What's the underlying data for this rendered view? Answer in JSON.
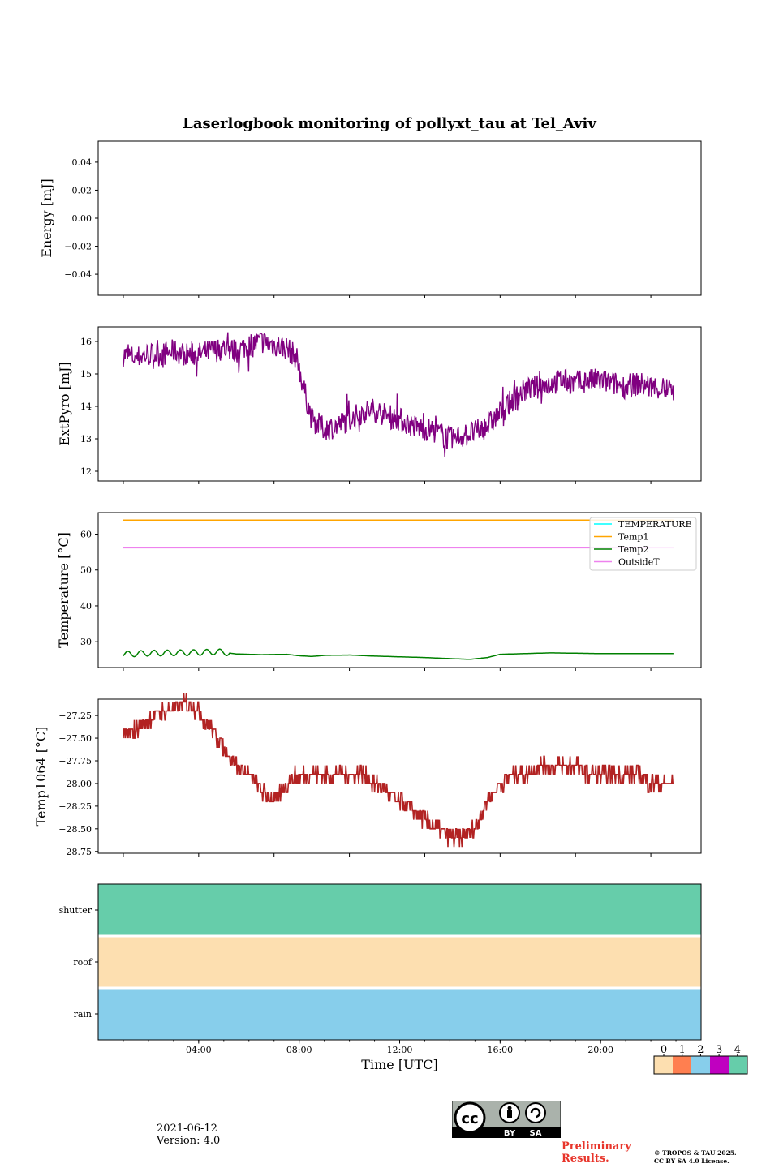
{
  "figure": {
    "title": "Laserlogbook monitoring of pollyxt_tau at Tel_Aviv",
    "date": "2021-06-12",
    "version": "Version: 4.0",
    "preliminary": [
      "Preliminary",
      "Results."
    ],
    "copyright": [
      "© TROPOS & TAU 2025.",
      "CC BY SA 4.0 License."
    ],
    "cc_badge": {
      "by": "BY",
      "sa": "SA",
      "cc": "cc"
    },
    "colors": {
      "energy": "#1f77b4",
      "extpyro": "#800080",
      "temp1": "#ffa500",
      "temp2": "#008000",
      "outside": "#ee82ee",
      "temperature": "#00ffff",
      "temp1064": "#b22222"
    }
  },
  "chart_data": [
    {
      "type": "line",
      "ylabel": "Energy [mJ]",
      "ylim": [
        -0.055,
        0.055
      ],
      "yticks": [
        0.04,
        0.02,
        0.0,
        -0.02,
        -0.04
      ],
      "ytick_labels": [
        "0.04",
        "0.02",
        "0.00",
        "−0.02",
        "−0.04"
      ],
      "series": [
        {
          "values": []
        }
      ]
    },
    {
      "type": "line",
      "ylabel": "ExtPyro [mJ]",
      "ylim": [
        11.7,
        16.45
      ],
      "yticks": [
        16,
        15,
        14,
        13,
        12
      ],
      "ytick_labels": [
        "16",
        "15",
        "14",
        "13",
        "12"
      ],
      "x": [
        1.0,
        1.5,
        2.0,
        2.5,
        3.0,
        3.5,
        4.0,
        4.5,
        5.0,
        5.5,
        6.0,
        6.5,
        7.0,
        7.5,
        7.9,
        8.2,
        8.5,
        9.0,
        9.5,
        10.0,
        10.5,
        11.0,
        11.5,
        12.0,
        12.5,
        13.0,
        13.5,
        14.0,
        14.5,
        15.0,
        15.5,
        16.0,
        16.5,
        17.0,
        17.5,
        18.0,
        18.5,
        19.0,
        19.5,
        20.0,
        20.5,
        21.0,
        21.5,
        22.0,
        22.9
      ],
      "series": [
        {
          "name": "ExtPyro",
          "color": "#800080",
          "values": [
            15.6,
            15.5,
            15.6,
            15.6,
            15.7,
            15.6,
            15.6,
            15.7,
            15.8,
            15.7,
            15.9,
            16.0,
            15.9,
            15.8,
            15.5,
            14.5,
            13.6,
            13.3,
            13.4,
            13.6,
            13.8,
            13.9,
            13.7,
            13.6,
            13.4,
            13.3,
            13.2,
            13.0,
            13.1,
            13.2,
            13.4,
            13.8,
            14.2,
            14.5,
            14.6,
            14.7,
            14.8,
            14.7,
            14.8,
            14.8,
            14.7,
            14.6,
            14.7,
            14.6,
            14.5
          ]
        }
      ]
    },
    {
      "type": "line",
      "ylabel": "Temperature [°C]",
      "ylim": [
        22.8,
        66
      ],
      "yticks": [
        60,
        50,
        40,
        30
      ],
      "ytick_labels": [
        "60",
        "50",
        "40",
        "30"
      ],
      "legend": {
        "position": "top-right",
        "entries": [
          "TEMPERATURE",
          "Temp1",
          "Temp2",
          "OutsideT"
        ]
      },
      "series": [
        {
          "name": "TEMPERATURE",
          "color": "#00ffff",
          "x": [],
          "values": []
        },
        {
          "name": "Temp1",
          "color": "#ffa500",
          "x": [
            1.0,
            22.9
          ],
          "values": [
            63.9,
            63.9
          ]
        },
        {
          "name": "Temp2",
          "color": "#008000",
          "x": [
            1.0,
            2.0,
            3.0,
            4.0,
            4.8,
            5.5,
            6.5,
            7.5,
            8.0,
            8.5,
            9.0,
            10.0,
            11.0,
            12.0,
            13.0,
            14.0,
            14.8,
            15.5,
            16.0,
            17.0,
            18.0,
            19.0,
            20.0,
            21.0,
            22.9
          ],
          "values": [
            26.5,
            26.8,
            26.9,
            27.0,
            27.2,
            26.6,
            26.4,
            26.5,
            26.1,
            25.9,
            26.2,
            26.3,
            26.0,
            25.8,
            25.6,
            25.3,
            25.1,
            25.6,
            26.5,
            26.7,
            26.9,
            26.8,
            26.7,
            26.7,
            26.7
          ]
        },
        {
          "name": "OutsideT",
          "color": "#ee82ee",
          "x": [
            1.0,
            22.9
          ],
          "values": [
            56.2,
            56.2
          ]
        }
      ]
    },
    {
      "type": "line",
      "ylabel": "Temp1064 [°C]",
      "ylim": [
        -28.77,
        -27.07
      ],
      "yticks": [
        -27.25,
        -27.5,
        -27.75,
        -28.0,
        -28.25,
        -28.5,
        -28.75
      ],
      "ytick_labels": [
        "−27.25",
        "−27.50",
        "−27.75",
        "−28.00",
        "−28.25",
        "−28.50",
        "−28.75"
      ],
      "x": [
        1.0,
        1.5,
        2.0,
        2.5,
        3.0,
        3.5,
        4.0,
        4.5,
        5.0,
        5.5,
        6.0,
        6.5,
        7.0,
        7.5,
        8.0,
        8.5,
        9.0,
        9.5,
        10.0,
        10.5,
        11.0,
        11.5,
        12.0,
        12.5,
        13.0,
        13.5,
        14.0,
        14.5,
        15.0,
        15.5,
        16.0,
        16.5,
        17.0,
        17.5,
        18.0,
        18.5,
        19.0,
        19.5,
        20.0,
        20.5,
        21.0,
        21.5,
        22.0,
        22.9
      ],
      "series": [
        {
          "name": "Temp1064",
          "color": "#b22222",
          "values": [
            -27.5,
            -27.4,
            -27.3,
            -27.2,
            -27.2,
            -27.1,
            -27.2,
            -27.4,
            -27.6,
            -27.8,
            -27.9,
            -28.1,
            -28.2,
            -28.0,
            -27.9,
            -27.9,
            -27.9,
            -27.9,
            -27.9,
            -27.9,
            -28.0,
            -28.1,
            -28.2,
            -28.3,
            -28.4,
            -28.5,
            -28.6,
            -28.6,
            -28.5,
            -28.2,
            -28.0,
            -27.9,
            -27.9,
            -27.8,
            -27.8,
            -27.8,
            -27.8,
            -27.9,
            -27.9,
            -27.9,
            -27.9,
            -27.9,
            -28.0,
            -28.0
          ]
        }
      ]
    },
    {
      "type": "heatmap",
      "xlabel": "Time [UTC]",
      "xlim": [
        0,
        24
      ],
      "xticks": [
        4,
        8,
        12,
        16,
        20
      ],
      "xtick_labels": [
        "04:00",
        "08:00",
        "12:00",
        "16:00",
        "20:00"
      ],
      "rows": [
        "shutter",
        "roof",
        "rain"
      ],
      "row_values": [
        4,
        0,
        2
      ],
      "colorbar": {
        "ticks": [
          "0",
          "1",
          "2",
          "3",
          "4"
        ],
        "colors": [
          "#fddfb0",
          "#ff7f50",
          "#87ceeb",
          "#c000c0",
          "#66cdaa"
        ]
      }
    }
  ]
}
